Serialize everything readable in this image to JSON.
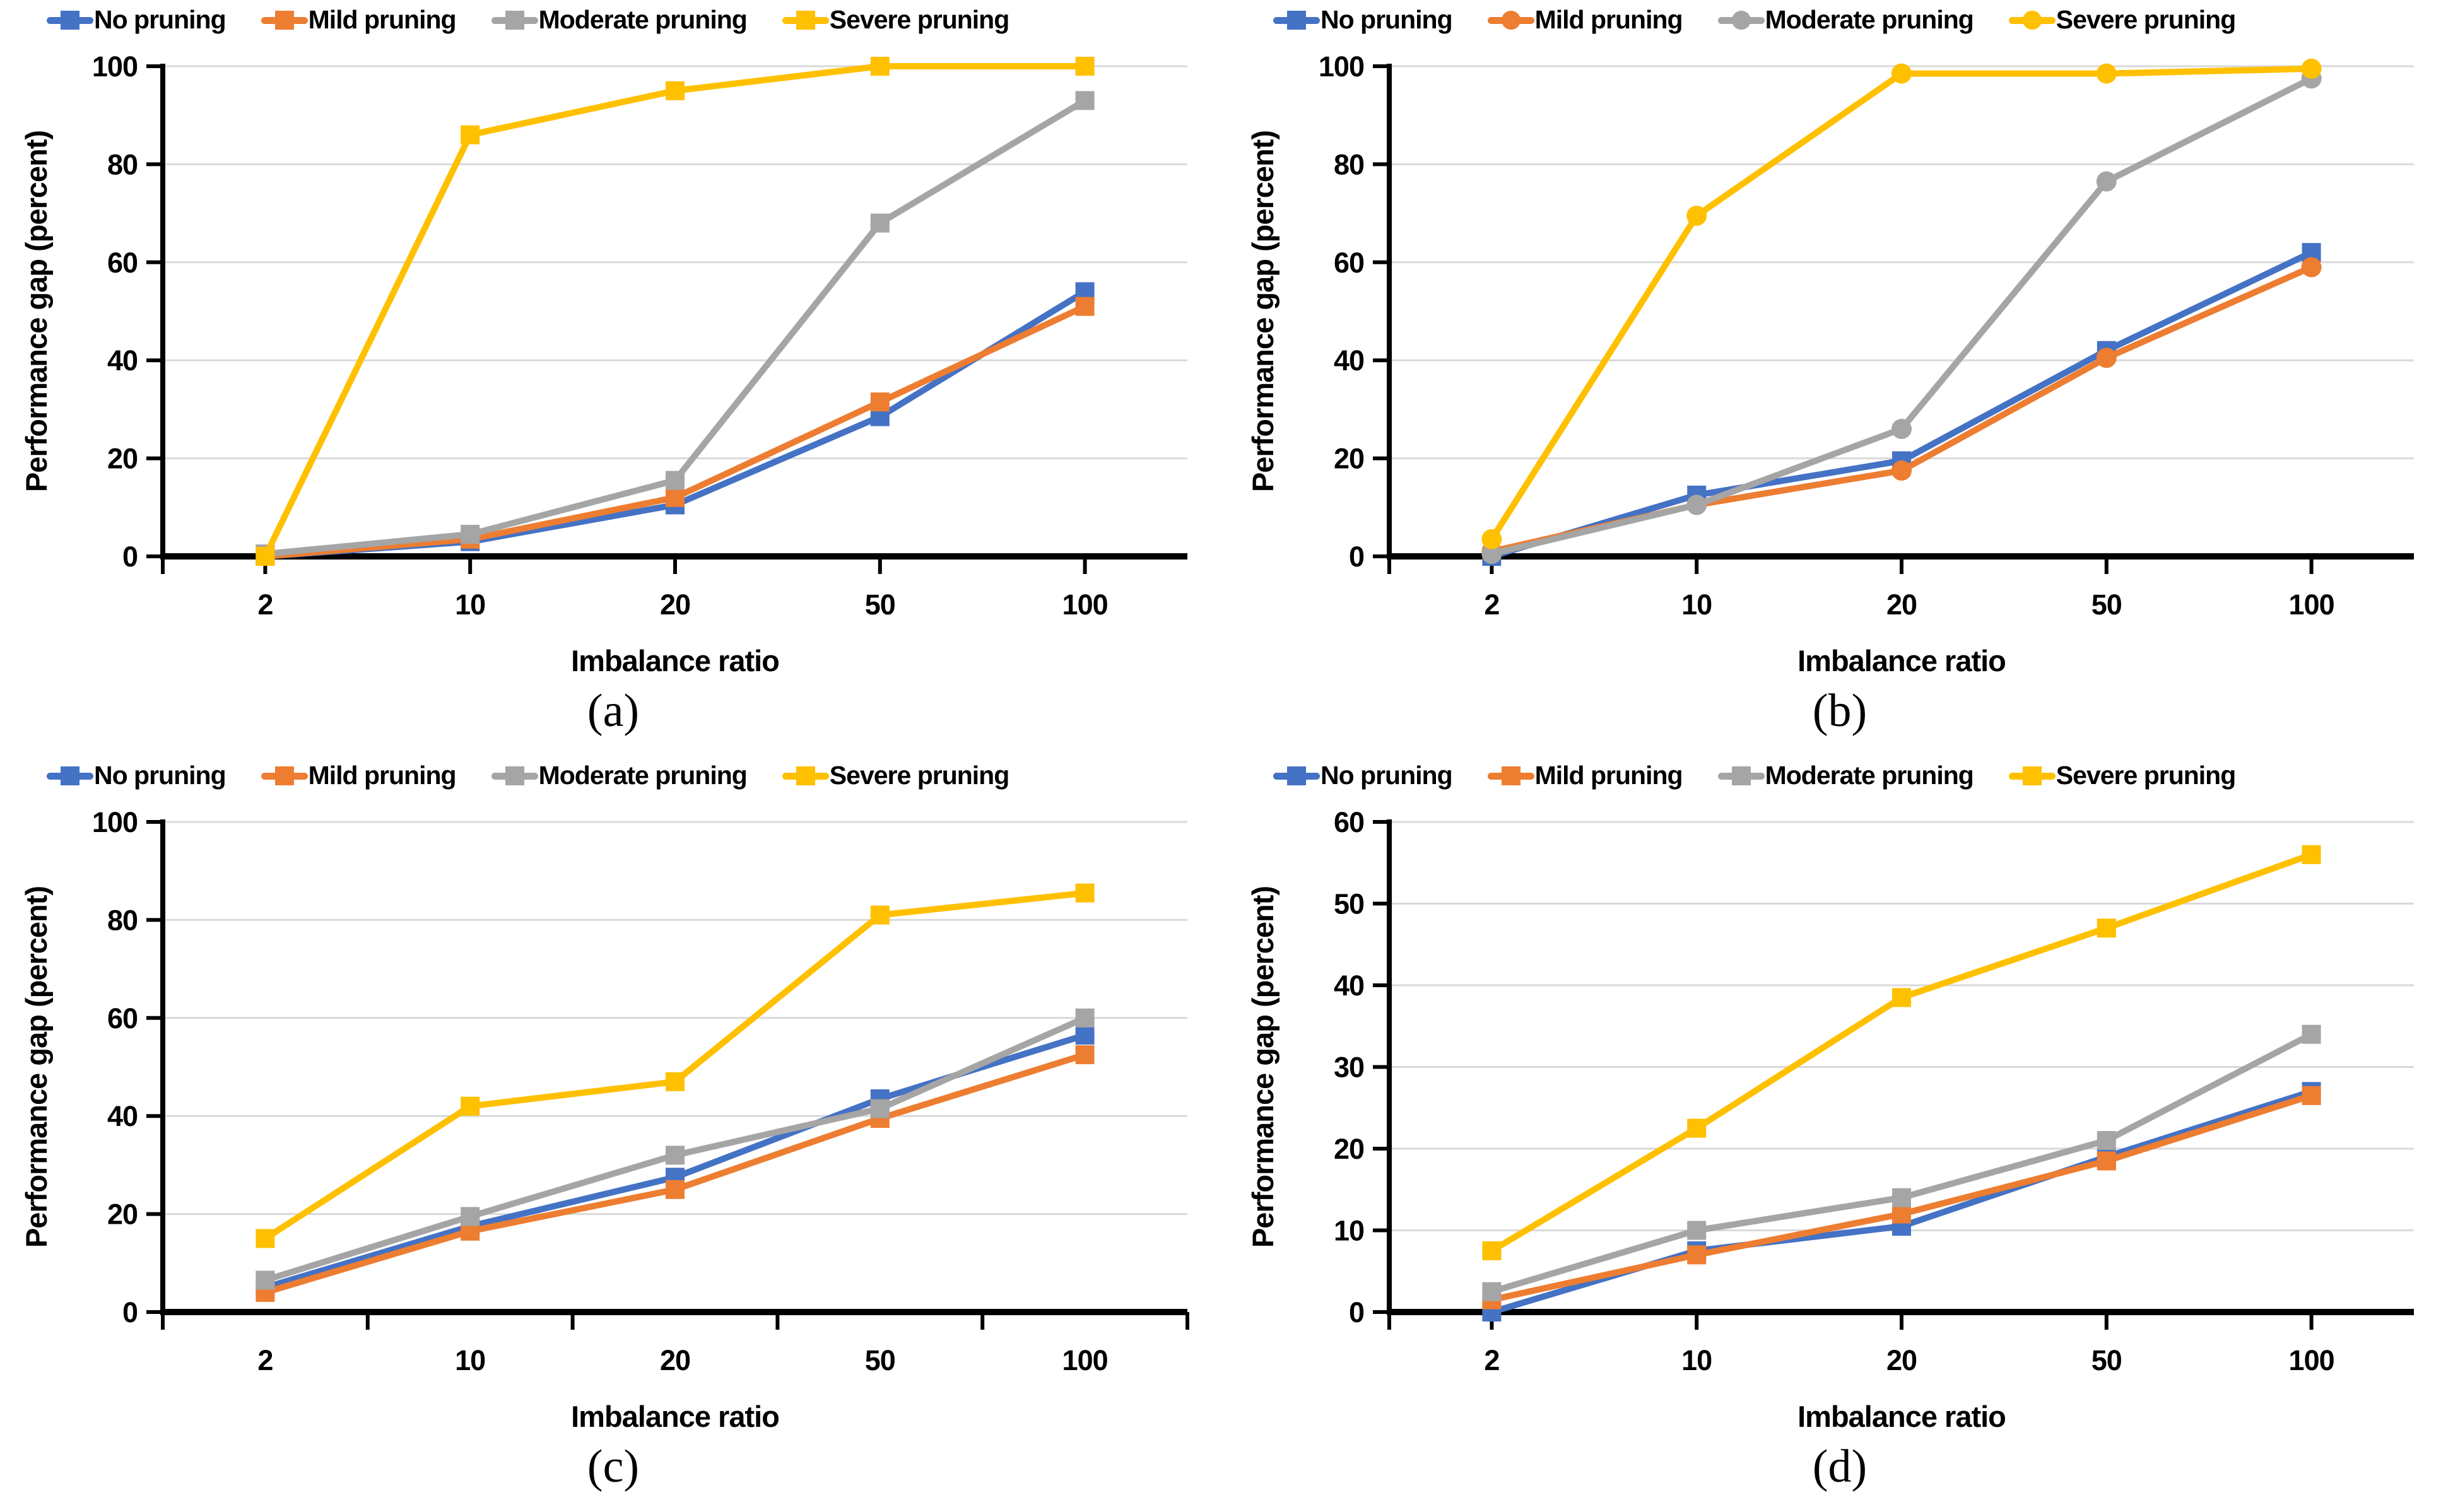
{
  "figure": {
    "background": "#ffffff",
    "grid_color": "#D9D9D9",
    "axis_color": "#000000",
    "xlabel": "Imbalance ratio",
    "ylabel": "Performance gap (percent)",
    "legend_labels": [
      "No pruning",
      "Mild pruning",
      "Moderate pruning",
      "Severe pruning"
    ],
    "series_colors": {
      "no_pruning": "#4472C4",
      "mild_pruning": "#ED7D31",
      "moderate_pruning": "#A5A5A5",
      "severe_pruning": "#FFC000"
    }
  },
  "chart_data": [
    {
      "id": "a",
      "type": "line",
      "caption": "(a)",
      "xlabel": "Imbalance ratio",
      "ylabel": "Performance gap (percent)",
      "categories": [
        2,
        10,
        20,
        50,
        100
      ],
      "ylim": [
        0,
        100
      ],
      "ytick_step": 20,
      "grid": true,
      "legend_position": "top",
      "x_tick_style": "center",
      "series": [
        {
          "name": "No pruning",
          "color": "#4472C4",
          "marker": "square",
          "values": [
            0,
            3,
            10.5,
            28.5,
            54
          ]
        },
        {
          "name": "Mild pruning",
          "color": "#ED7D31",
          "marker": "square",
          "values": [
            0,
            3.5,
            12,
            31.5,
            51
          ]
        },
        {
          "name": "Moderate pruning",
          "color": "#A5A5A5",
          "marker": "square",
          "values": [
            0.5,
            4.5,
            15.5,
            68,
            93
          ]
        },
        {
          "name": "Severe pruning",
          "color": "#FFC000",
          "marker": "square",
          "values": [
            0,
            86,
            95,
            100,
            100
          ]
        }
      ]
    },
    {
      "id": "b",
      "type": "line",
      "caption": "(b)",
      "xlabel": "Imbalance ratio",
      "ylabel": "Performance gap (percent)",
      "categories": [
        2,
        10,
        20,
        50,
        100
      ],
      "ylim": [
        0,
        100
      ],
      "ytick_step": 20,
      "grid": true,
      "legend_position": "top",
      "x_tick_style": "center",
      "series": [
        {
          "name": "No pruning",
          "color": "#4472C4",
          "marker": "square",
          "values": [
            0,
            12.5,
            19.5,
            42,
            62
          ]
        },
        {
          "name": "Mild pruning",
          "color": "#ED7D31",
          "marker": "circle",
          "values": [
            1,
            10.5,
            17.5,
            40.5,
            59
          ]
        },
        {
          "name": "Moderate pruning",
          "color": "#A5A5A5",
          "marker": "circle",
          "values": [
            0.5,
            10.5,
            26,
            76.5,
            97.5
          ]
        },
        {
          "name": "Severe pruning",
          "color": "#FFC000",
          "marker": "circle",
          "values": [
            3.5,
            69.5,
            98.5,
            98.5,
            99.5
          ]
        }
      ]
    },
    {
      "id": "c",
      "type": "line",
      "caption": "(c)",
      "xlabel": "Imbalance ratio",
      "ylabel": "Performance gap (percent)",
      "categories": [
        2,
        10,
        20,
        50,
        100
      ],
      "ylim": [
        0,
        100
      ],
      "ytick_step": 20,
      "grid": true,
      "legend_position": "top",
      "x_tick_style": "boundary",
      "series": [
        {
          "name": "No pruning",
          "color": "#4472C4",
          "marker": "square",
          "values": [
            5,
            17.5,
            27.5,
            43.5,
            56.5
          ]
        },
        {
          "name": "Mild pruning",
          "color": "#ED7D31",
          "marker": "square",
          "values": [
            4,
            16.5,
            25,
            39.5,
            52.5
          ]
        },
        {
          "name": "Moderate pruning",
          "color": "#A5A5A5",
          "marker": "square",
          "values": [
            6.5,
            19.5,
            32,
            41.5,
            60
          ]
        },
        {
          "name": "Severe pruning",
          "color": "#FFC000",
          "marker": "square",
          "values": [
            15,
            42,
            47,
            81,
            85.5
          ]
        }
      ]
    },
    {
      "id": "d",
      "type": "line",
      "caption": "(d)",
      "xlabel": "Imbalance ratio",
      "ylabel": "Performance gap (percent)",
      "categories": [
        2,
        10,
        20,
        50,
        100
      ],
      "ylim": [
        0,
        60
      ],
      "ytick_step": 10,
      "grid": true,
      "legend_position": "top",
      "x_tick_style": "center",
      "series": [
        {
          "name": "No pruning",
          "color": "#4472C4",
          "marker": "square",
          "values": [
            0,
            7.5,
            10.5,
            19,
            27
          ]
        },
        {
          "name": "Mild pruning",
          "color": "#ED7D31",
          "marker": "square",
          "values": [
            1.5,
            7,
            12,
            18.5,
            26.5
          ]
        },
        {
          "name": "Moderate pruning",
          "color": "#A5A5A5",
          "marker": "square",
          "values": [
            2.5,
            10,
            14,
            21,
            34
          ]
        },
        {
          "name": "Severe pruning",
          "color": "#FFC000",
          "marker": "square",
          "values": [
            7.5,
            22.5,
            38.5,
            47,
            56
          ]
        }
      ]
    }
  ]
}
